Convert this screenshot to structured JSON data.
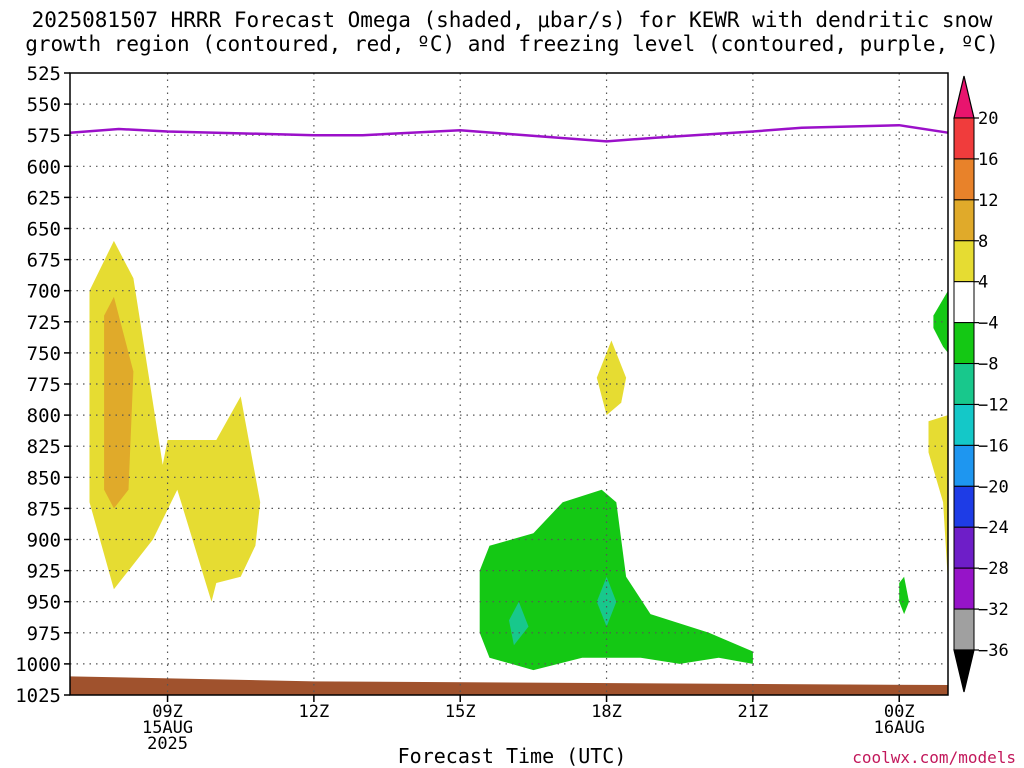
{
  "title": {
    "line1": "2025081507 HRRR Forecast Omega (shaded, μbar/s) for KEWR with dendritic snow",
    "line2": "growth region (contoured, red, ºC) and freezing level (contoured, purple, ºC)"
  },
  "xlabel": "Forecast Time (UTC)",
  "credit": "coolwx.com/models",
  "chart_data": {
    "type": "time-height contour",
    "title": "2025081507 HRRR Forecast Omega (shaded, μbar/s) for KEWR with dendritic snow growth region (contoured, red, ºC) and freezing level (contoured, purple, ºC)",
    "xlabel": "Forecast Time (UTC)",
    "ylabel": "",
    "x_range_hours": [
      7,
      25
    ],
    "y_range_hPa": [
      1025,
      525
    ],
    "y_ticks": [
      525,
      550,
      575,
      600,
      625,
      650,
      675,
      700,
      725,
      750,
      775,
      800,
      825,
      850,
      875,
      900,
      925,
      950,
      975,
      1000,
      1025
    ],
    "x_ticks": [
      {
        "hour": 9,
        "labels": [
          "09Z",
          "15AUG",
          "2025"
        ]
      },
      {
        "hour": 12,
        "labels": [
          "12Z"
        ]
      },
      {
        "hour": 15,
        "labels": [
          "15Z"
        ]
      },
      {
        "hour": 18,
        "labels": [
          "18Z"
        ]
      },
      {
        "hour": 21,
        "labels": [
          "21Z"
        ]
      },
      {
        "hour": 24,
        "labels": [
          "00Z",
          "16AUG"
        ]
      }
    ],
    "grid": true,
    "colorbar": {
      "labels": [
        "20",
        "16",
        "12",
        "8",
        "4",
        "-4",
        "-8",
        "-12",
        "-16",
        "-20",
        "-24",
        "-28",
        "-32",
        "-36"
      ],
      "colors": [
        "#e8146e",
        "#f03c3c",
        "#e8822a",
        "#e0aa2a",
        "#e6dc32",
        "#ffffff",
        "#14c814",
        "#18c88c",
        "#14c8c8",
        "#1e96f0",
        "#1e3ce6",
        "#6e1ec8",
        "#9614c8",
        "#a0a0a0",
        "#000000"
      ]
    },
    "omega_regions": [
      {
        "level": "4 to 8",
        "color": "#e6dc32",
        "points": [
          [
            7.9,
            940
          ],
          [
            7.4,
            870
          ],
          [
            7.4,
            700
          ],
          [
            7.9,
            660
          ],
          [
            8.3,
            690
          ],
          [
            8.9,
            840
          ],
          [
            9.0,
            820
          ],
          [
            10.0,
            820
          ],
          [
            10.5,
            785
          ],
          [
            10.9,
            870
          ],
          [
            10.8,
            905
          ],
          [
            10.5,
            930
          ],
          [
            10.0,
            935
          ],
          [
            9.9,
            950
          ],
          [
            9.2,
            860
          ],
          [
            8.7,
            900
          ]
        ]
      },
      {
        "level": "8 to 12",
        "color": "#e0aa2a",
        "points": [
          [
            7.9,
            875
          ],
          [
            7.7,
            860
          ],
          [
            7.7,
            720
          ],
          [
            7.9,
            705
          ],
          [
            8.3,
            765
          ],
          [
            8.2,
            860
          ]
        ]
      },
      {
        "level": "4 to 8",
        "color": "#e6dc32",
        "points": [
          [
            17.8,
            770
          ],
          [
            18.1,
            740
          ],
          [
            18.4,
            770
          ],
          [
            18.3,
            790
          ],
          [
            18.0,
            800
          ]
        ]
      },
      {
        "level": "4 to 8",
        "color": "#e6dc32",
        "points": [
          [
            25.0,
            800
          ],
          [
            24.6,
            805
          ],
          [
            24.6,
            830
          ],
          [
            24.9,
            870
          ],
          [
            25.0,
            935
          ]
        ]
      },
      {
        "level": "-4 to -8",
        "color": "#14c814",
        "points": [
          [
            15.4,
            925
          ],
          [
            15.6,
            905
          ],
          [
            16.5,
            895
          ],
          [
            17.1,
            870
          ],
          [
            17.9,
            860
          ],
          [
            18.2,
            870
          ],
          [
            18.4,
            930
          ],
          [
            18.9,
            960
          ],
          [
            20.1,
            975
          ],
          [
            21.0,
            990
          ],
          [
            21.0,
            1000
          ],
          [
            20.3,
            995
          ],
          [
            19.5,
            1000
          ],
          [
            18.7,
            995
          ],
          [
            17.5,
            995
          ],
          [
            16.5,
            1005
          ],
          [
            15.6,
            995
          ],
          [
            15.4,
            975
          ]
        ]
      },
      {
        "level": "-8 to -12",
        "color": "#18c88c",
        "points": [
          [
            16.0,
            965
          ],
          [
            16.2,
            950
          ],
          [
            16.4,
            970
          ],
          [
            16.1,
            985
          ]
        ]
      },
      {
        "level": "-8 to -12",
        "color": "#18c88c",
        "points": [
          [
            17.8,
            950
          ],
          [
            18.0,
            930
          ],
          [
            18.2,
            950
          ],
          [
            18.0,
            970
          ]
        ]
      },
      {
        "level": "-4 to -8",
        "color": "#14c814",
        "points": [
          [
            24.0,
            950
          ],
          [
            24.0,
            935
          ],
          [
            24.1,
            930
          ],
          [
            24.2,
            950
          ],
          [
            24.1,
            960
          ]
        ]
      },
      {
        "level": "-4 to -8",
        "color": "#14c814",
        "points": [
          [
            25.0,
            700
          ],
          [
            24.7,
            720
          ],
          [
            24.7,
            730
          ],
          [
            24.9,
            745
          ],
          [
            25.0,
            750
          ]
        ]
      }
    ],
    "freezing_level": {
      "color": "#9b10c9",
      "x": [
        7,
        8,
        9,
        10,
        12,
        13,
        15,
        16,
        18,
        19,
        21,
        22,
        23,
        24,
        25
      ],
      "p": [
        573,
        570,
        572,
        573,
        575,
        575,
        571,
        574,
        580,
        577,
        572,
        569,
        568,
        567,
        573
      ]
    },
    "terrain": {
      "color": "#a0522d",
      "top_p_start": 1010,
      "top_p_end": 1017
    }
  }
}
